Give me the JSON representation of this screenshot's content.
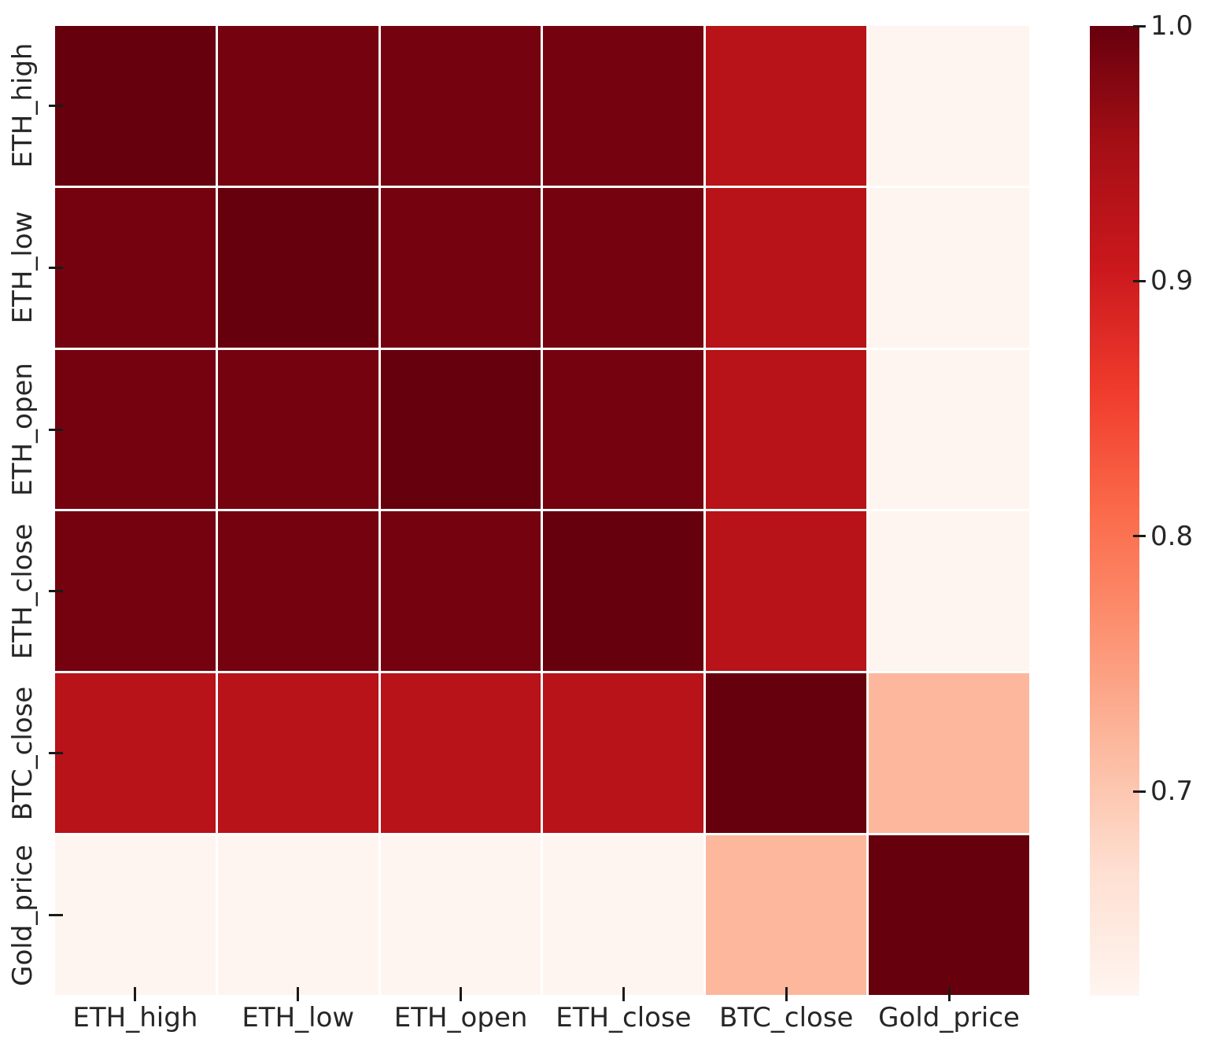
{
  "chart_data": {
    "type": "heatmap",
    "title": "",
    "variables": [
      "ETH_high",
      "ETH_low",
      "ETH_open",
      "ETH_close",
      "BTC_close",
      "Gold_price"
    ],
    "x_tick_labels": [
      "ETH_high",
      "ETH_low",
      "ETH_open",
      "ETH_close",
      "BTC_close",
      "Gold_price"
    ],
    "y_tick_labels": [
      "ETH_high",
      "ETH_low",
      "ETH_open",
      "ETH_close",
      "BTC_close",
      "Gold_price"
    ],
    "matrix": [
      [
        1.0,
        0.99,
        0.99,
        0.99,
        0.93,
        0.62
      ],
      [
        0.99,
        1.0,
        0.99,
        0.99,
        0.93,
        0.62
      ],
      [
        0.99,
        0.99,
        1.0,
        0.99,
        0.93,
        0.62
      ],
      [
        0.99,
        0.99,
        0.99,
        1.0,
        0.93,
        0.62
      ],
      [
        0.93,
        0.93,
        0.93,
        0.93,
        1.0,
        0.72
      ],
      [
        0.62,
        0.62,
        0.62,
        0.62,
        0.72,
        1.0
      ]
    ],
    "vmin": 0.62,
    "vmax": 1.0,
    "colormap": "Reds",
    "colormap_stops": [
      {
        "t": 0.0,
        "color": "#fff5f0"
      },
      {
        "t": 0.125,
        "color": "#fee0d2"
      },
      {
        "t": 0.25,
        "color": "#fcbba1"
      },
      {
        "t": 0.375,
        "color": "#fc9272"
      },
      {
        "t": 0.5,
        "color": "#fb6a4a"
      },
      {
        "t": 0.625,
        "color": "#ef3b2c"
      },
      {
        "t": 0.75,
        "color": "#cb181d"
      },
      {
        "t": 0.875,
        "color": "#a50f15"
      },
      {
        "t": 1.0,
        "color": "#67000d"
      }
    ],
    "colorbar": {
      "position": "right",
      "tick_values": [
        1.0,
        0.9,
        0.8,
        0.7
      ],
      "tick_labels": [
        "1.0",
        "0.9",
        "0.8",
        "0.7"
      ]
    },
    "grid_line_color": "#ffffff",
    "tick_mark_color": "#1a1a1a",
    "tick_label_color": "#262626",
    "grid": false,
    "legend": false,
    "annotations_in_cells": false
  }
}
